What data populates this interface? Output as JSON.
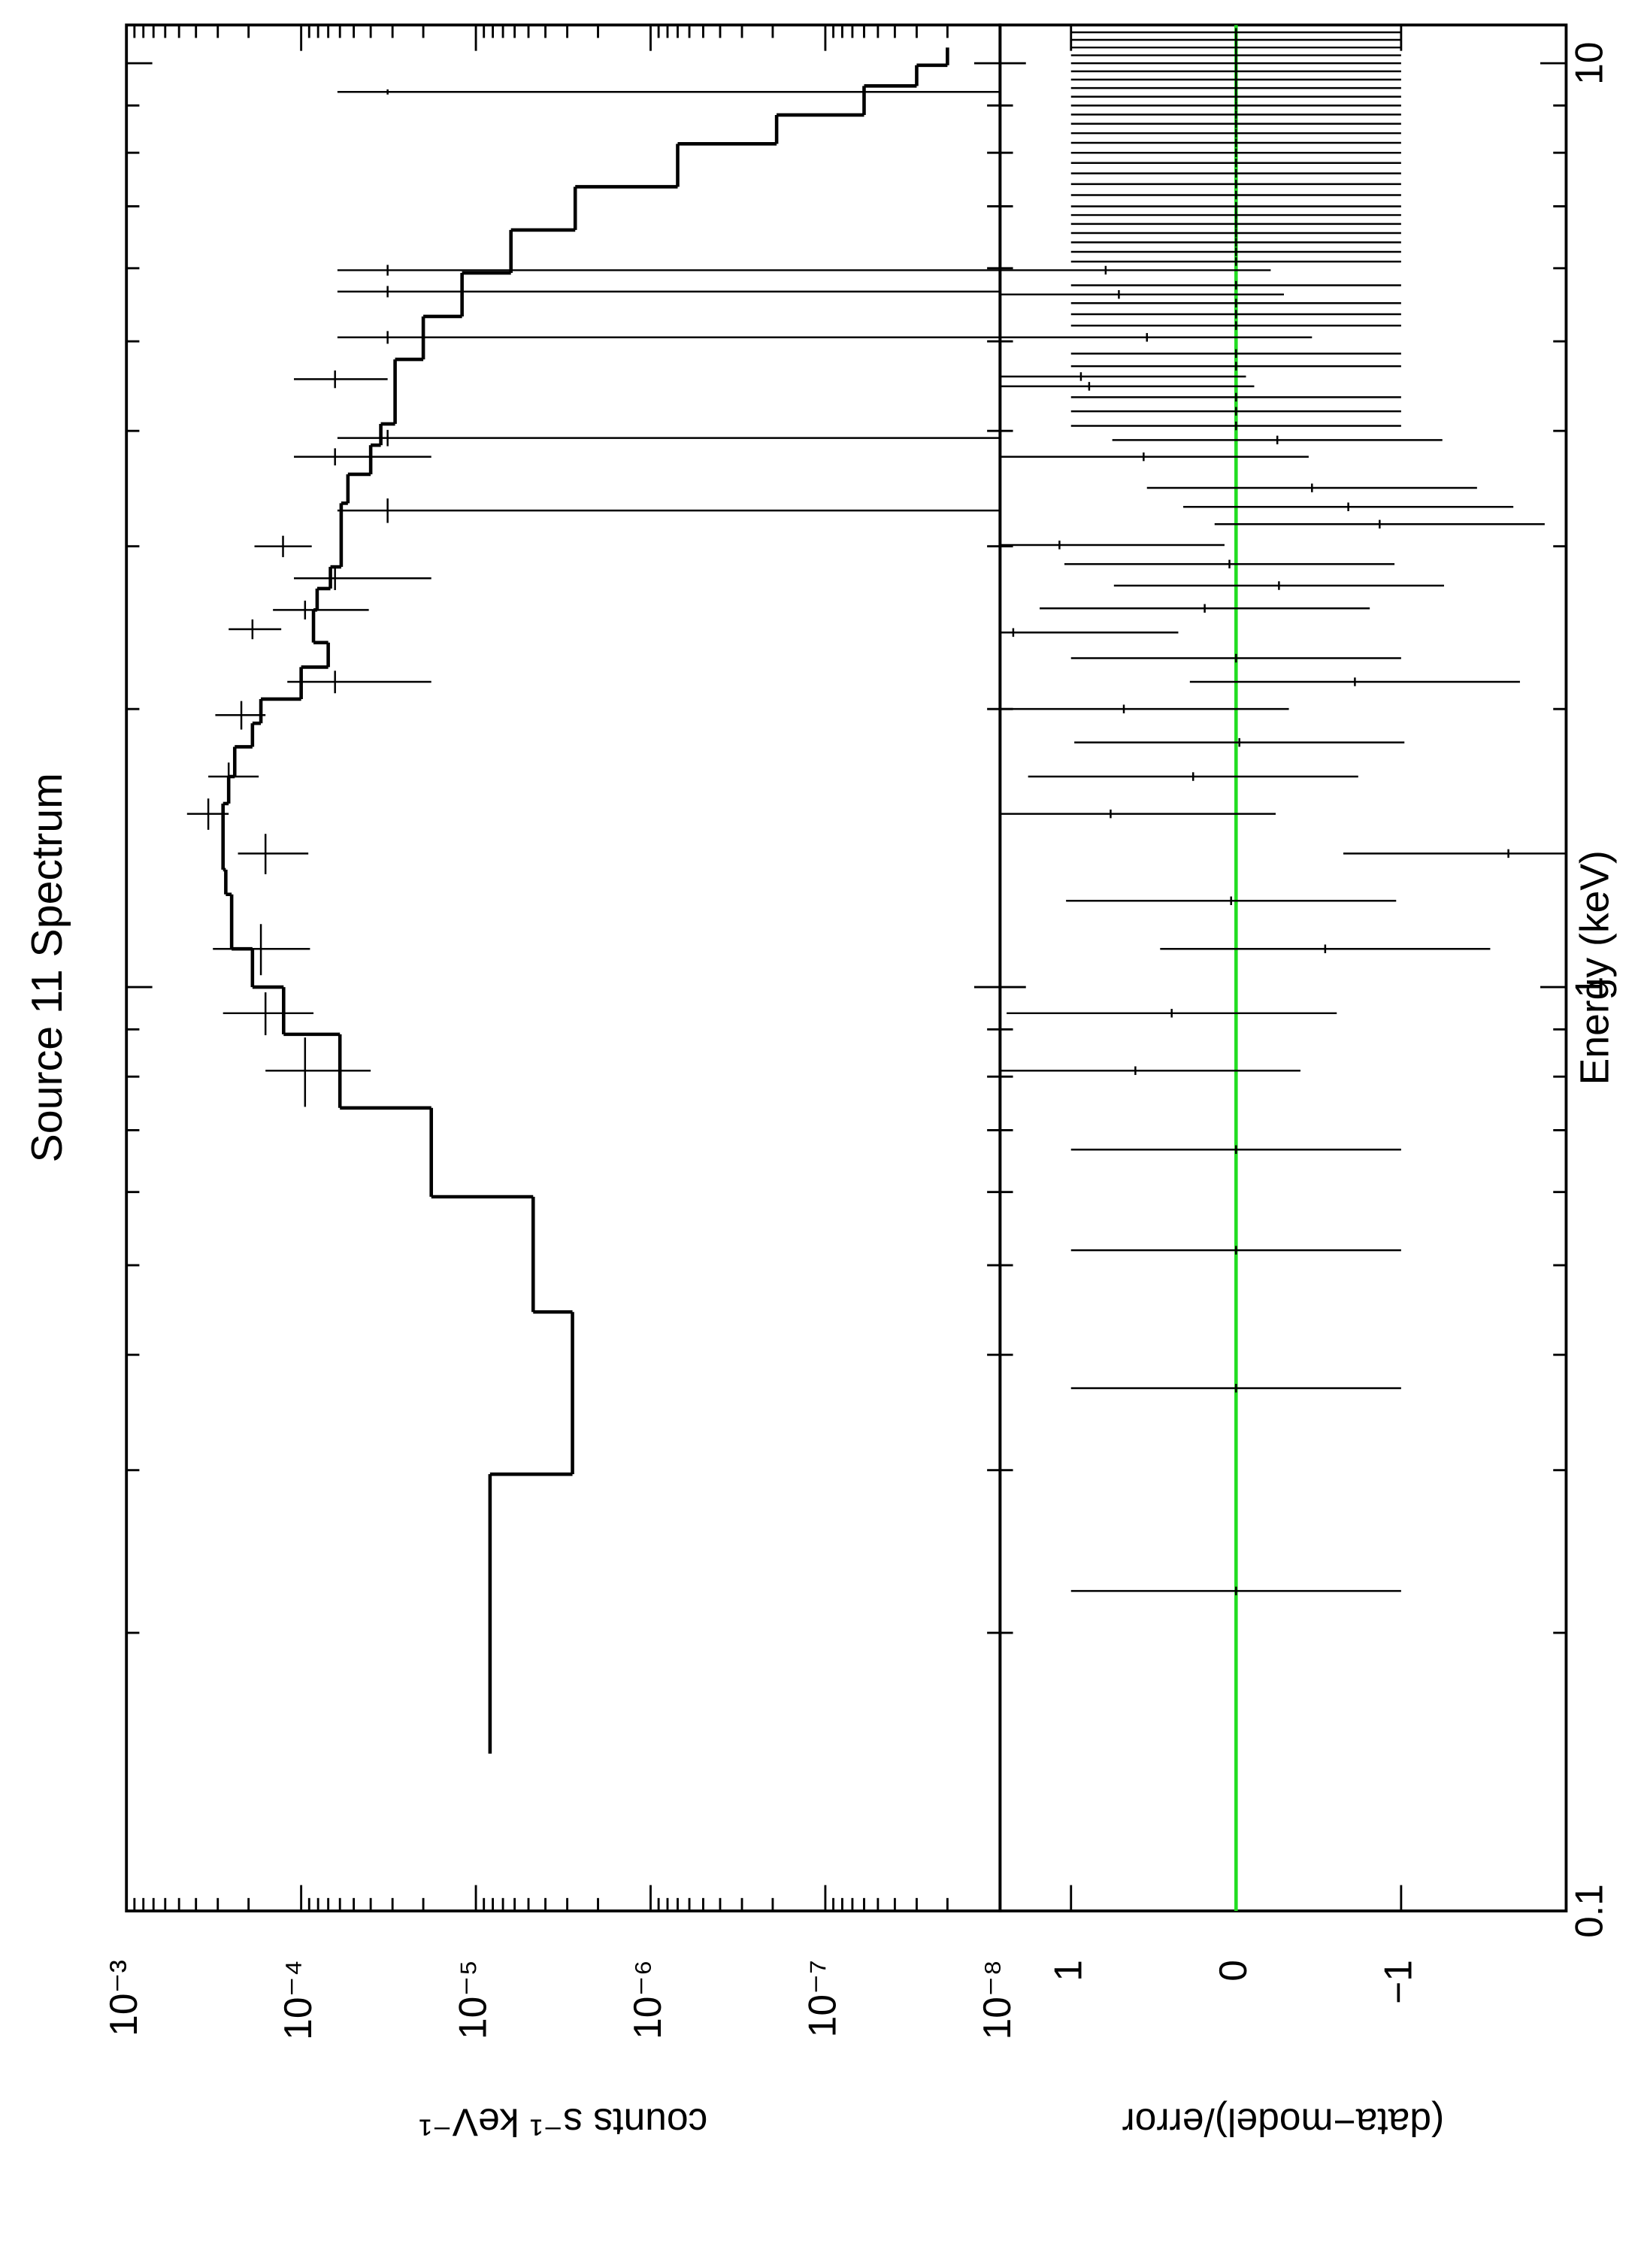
{
  "chart_data": [
    {
      "type": "spectrum",
      "title": "Source 11 Spectrum",
      "y_label": "counts s⁻¹ keV⁻¹",
      "xlog": true,
      "xlim": [
        0.1,
        11
      ],
      "xticks": [
        0.1,
        1,
        10
      ],
      "xminor_ticks": [
        0.2,
        0.3,
        0.4,
        0.5,
        0.6,
        0.7,
        0.8,
        0.9,
        2,
        3,
        4,
        5,
        6,
        7,
        8,
        9
      ],
      "ylog": true,
      "ylim": [
        1e-08,
        0.001
      ],
      "yticks": [
        {
          "value": 0.001,
          "label": "10⁻³"
        },
        {
          "value": 0.0001,
          "label": "10⁻⁴"
        },
        {
          "value": 1e-05,
          "label": "10⁻⁵"
        },
        {
          "value": 1e-06,
          "label": "10⁻⁶"
        },
        {
          "value": 1e-07,
          "label": "10⁻⁷"
        },
        {
          "value": 1e-08,
          "label": "10⁻⁸"
        }
      ],
      "yminor_ticks": [
        2e-08,
        3e-08,
        4e-08,
        5e-08,
        6e-08,
        7e-08,
        8e-08,
        9e-08,
        2e-07,
        3e-07,
        4e-07,
        5e-07,
        6e-07,
        7e-07,
        8e-07,
        9e-07,
        2e-06,
        3e-06,
        4e-06,
        5e-06,
        6e-06,
        7e-06,
        8e-06,
        9e-06,
        2e-05,
        3e-05,
        4e-05,
        5e-05,
        6e-05,
        7e-05,
        8e-05,
        9e-05,
        0.0002,
        0.0003,
        0.0004,
        0.0005,
        0.0006,
        0.0007,
        0.0008,
        0.0009
      ],
      "color": "#000000",
      "model": {
        "bins": [
          0.148,
          0.297,
          0.445,
          0.593,
          0.74,
          0.889,
          1.0,
          1.1,
          1.26,
          1.34,
          1.58,
          1.69,
          1.82,
          1.93,
          2.05,
          2.22,
          2.36,
          2.56,
          2.7,
          2.85,
          3.34,
          3.59,
          3.86,
          4.07,
          4.78,
          5.32,
          5.93,
          6.6,
          7.35,
          8.18,
          8.79,
          9.45,
          9.95,
          10.4
        ],
        "values": [
          8.3e-06,
          2.8e-06,
          4.7e-06,
          1.8e-05,
          6e-05,
          0.000126,
          0.00019,
          0.00025,
          0.00027,
          0.00028,
          0.00026,
          0.00024,
          0.00019,
          0.00017,
          0.0001,
          7e-05,
          8.5e-05,
          8.1e-05,
          6.8e-05,
          5.9e-05,
          5.4e-05,
          4e-05,
          3.5e-05,
          2.9e-05,
          2e-05,
          1.2e-05,
          6.3e-06,
          2.7e-06,
          7e-07,
          1.9e-07,
          6e-08,
          3e-08,
          2e-08
        ]
      },
      "data": {
        "x": [
          0.812,
          0.937,
          1.1,
          1.395,
          1.54,
          1.69,
          1.97,
          2.14,
          2.44,
          2.56,
          2.77,
          3.0,
          3.28,
          3.75,
          3.93,
          4.55,
          5.05,
          5.66,
          5.97,
          9.31
        ],
        "xerr": [
          0.07,
          0.05,
          0.07,
          0.07,
          0.06,
          0.06,
          0.07,
          0.06,
          0.06,
          0.06,
          0.08,
          0.08,
          0.1,
          0.08,
          0.08,
          0.1,
          0.08,
          0.08,
          0.08,
          0.06
        ],
        "values": [
          9.5e-05,
          0.00016,
          0.00017,
          0.00016,
          0.00034,
          0.00026,
          0.00022,
          6.4e-05,
          0.00019,
          9.5e-05,
          6.4e-05,
          0.000127,
          3.2e-05,
          6.4e-05,
          3.2e-05,
          6.4e-05,
          3.2e-05,
          3.2e-05,
          3.2e-05,
          3.2e-05
        ],
        "y_low": [
          4e-05,
          8.5e-05,
          8.9e-05,
          9.1e-05,
          0.00026,
          0.000175,
          0.00016,
          1.8e-05,
          0.00013,
          4.1e-05,
          1.8e-05,
          8.7e-05,
          0,
          1.8e-05,
          0,
          3.2e-05,
          0,
          0,
          0,
          0
        ],
        "y_high": [
          0.00016,
          0.00028,
          0.00032,
          0.00023,
          0.00045,
          0.00034,
          0.00031,
          0.00012,
          0.00026,
          0.000145,
          0.00011,
          0.000185,
          6.2e-05,
          0.00011,
          6.2e-05,
          0.00011,
          6.2e-05,
          6.2e-05,
          6.2e-05,
          6.2e-05
        ]
      }
    },
    {
      "type": "residuals",
      "x_label": "Energy (keV)",
      "y_label": "(data−model)/error",
      "xlog": true,
      "xlim": [
        0.1,
        11
      ],
      "xticks": [
        0.1,
        1,
        10
      ],
      "xminor_ticks": [
        0.2,
        0.3,
        0.4,
        0.5,
        0.6,
        0.7,
        0.8,
        0.9,
        2,
        3,
        4,
        5,
        6,
        7,
        8,
        9
      ],
      "ylim": [
        -2,
        1.43
      ],
      "yticks": [
        1,
        0,
        {
          "value": -1,
          "label": "−1"
        }
      ],
      "color": "#000000",
      "zero_line": {
        "value": 0,
        "color": "#22dd22"
      },
      "yerr": 1,
      "x": [
        0.222,
        0.368,
        0.519,
        0.667,
        0.812,
        0.937,
        1.1,
        1.24,
        1.395,
        1.54,
        1.69,
        1.84,
        2.0,
        2.14,
        2.27,
        2.42,
        2.57,
        2.72,
        2.87,
        3.01,
        3.17,
        3.31,
        3.47,
        3.75,
        3.91,
        4.05,
        4.2,
        4.35,
        4.47,
        4.58,
        4.7,
        4.85,
        5.05,
        5.2,
        5.35,
        5.5,
        5.62,
        5.75,
        5.97,
        6.1,
        6.25,
        6.4,
        6.55,
        6.7,
        6.85,
        7.0,
        7.2,
        7.4,
        7.6,
        7.8,
        8.0,
        8.2,
        8.4,
        8.6,
        8.8,
        9.0,
        9.2,
        9.4,
        9.6,
        9.8,
        10.0,
        10.2,
        10.4,
        10.6,
        10.8
      ],
      "values": [
        0,
        0,
        0,
        0,
        0.61,
        0.39,
        -0.54,
        0.03,
        -1.65,
        0.76,
        0.26,
        -0.02,
        0.68,
        -0.72,
        0,
        1.35,
        0.19,
        -0.26,
        0.04,
        1.07,
        -0.87,
        -0.68,
        -0.46,
        0.56,
        -0.25,
        0,
        0,
        0,
        0.89,
        0.94,
        0,
        0,
        0.54,
        0,
        0,
        0,
        0.71,
        0,
        0.79,
        0,
        0,
        0,
        0,
        0,
        0,
        0,
        0,
        0,
        0,
        0,
        0,
        0,
        0,
        0,
        0,
        0,
        0,
        0,
        0,
        0,
        0,
        0,
        0,
        0,
        0
      ]
    }
  ]
}
